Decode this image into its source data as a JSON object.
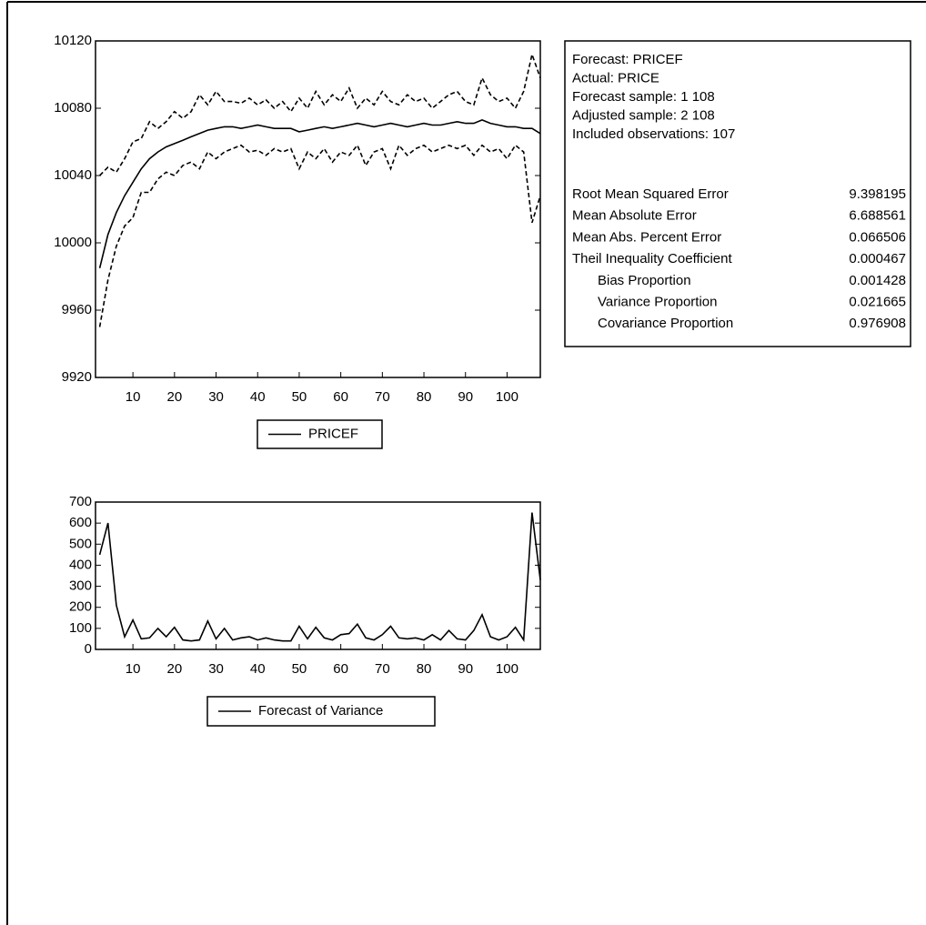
{
  "chart_data": [
    {
      "type": "line",
      "x": [
        2,
        4,
        6,
        8,
        10,
        12,
        14,
        16,
        18,
        20,
        22,
        24,
        26,
        28,
        30,
        32,
        34,
        36,
        38,
        40,
        42,
        44,
        46,
        48,
        50,
        52,
        54,
        56,
        58,
        60,
        62,
        64,
        66,
        68,
        70,
        72,
        74,
        76,
        78,
        80,
        82,
        84,
        86,
        88,
        90,
        92,
        94,
        96,
        98,
        100,
        102,
        104,
        106,
        108
      ],
      "series": [
        {
          "name": "PRICEF",
          "color": "#000000",
          "dashed": false,
          "values": [
            9985,
            10005,
            10018,
            10028,
            10036,
            10044,
            10050,
            10054,
            10057,
            10059,
            10061,
            10063,
            10065,
            10067,
            10068,
            10069,
            10069,
            10068,
            10069,
            10070,
            10069,
            10068,
            10068,
            10068,
            10066,
            10067,
            10068,
            10069,
            10068,
            10069,
            10070,
            10071,
            10070,
            10069,
            10070,
            10071,
            10070,
            10069,
            10070,
            10071,
            10070,
            10070,
            10071,
            10072,
            10071,
            10071,
            10073,
            10071,
            10070,
            10069,
            10069,
            10068,
            10068,
            10065
          ]
        },
        {
          "color": "#000000",
          "dashed": true,
          "values": [
            10040,
            10045,
            10042,
            10050,
            10060,
            10062,
            10072,
            10068,
            10072,
            10078,
            10074,
            10078,
            10088,
            10082,
            10090,
            10084,
            10084,
            10083,
            10086,
            10082,
            10085,
            10080,
            10084,
            10078,
            10086,
            10080,
            10090,
            10082,
            10088,
            10084,
            10092,
            10080,
            10086,
            10082,
            10090,
            10084,
            10082,
            10088,
            10084,
            10086,
            10080,
            10084,
            10088,
            10090,
            10084,
            10082,
            10098,
            10088,
            10084,
            10086,
            10080,
            10090,
            10112,
            10098
          ]
        },
        {
          "color": "#000000",
          "dashed": true,
          "values": [
            9950,
            9978,
            9998,
            10010,
            10015,
            10030,
            10030,
            10038,
            10042,
            10040,
            10046,
            10048,
            10044,
            10054,
            10050,
            10054,
            10056,
            10058,
            10054,
            10055,
            10052,
            10056,
            10054,
            10056,
            10044,
            10054,
            10050,
            10056,
            10048,
            10054,
            10052,
            10058,
            10046,
            10054,
            10056,
            10044,
            10058,
            10052,
            10056,
            10058,
            10054,
            10056,
            10058,
            10056,
            10058,
            10052,
            10058,
            10054,
            10056,
            10050,
            10058,
            10054,
            10012,
            10028
          ]
        }
      ],
      "xlim": [
        1,
        108
      ],
      "xticks": [
        10,
        20,
        30,
        40,
        50,
        60,
        70,
        80,
        90,
        100
      ],
      "ylim": [
        9920,
        10120
      ],
      "yticks": [
        9920,
        9960,
        10000,
        10040,
        10080,
        10120
      ]
    },
    {
      "type": "line",
      "x": [
        2,
        4,
        6,
        8,
        10,
        12,
        14,
        16,
        18,
        20,
        22,
        24,
        26,
        28,
        30,
        32,
        34,
        36,
        38,
        40,
        42,
        44,
        46,
        48,
        50,
        52,
        54,
        56,
        58,
        60,
        62,
        64,
        66,
        68,
        70,
        72,
        74,
        76,
        78,
        80,
        82,
        84,
        86,
        88,
        90,
        92,
        94,
        96,
        98,
        100,
        102,
        104,
        106,
        108
      ],
      "series": [
        {
          "name": "Forecast of Variance",
          "color": "#000000",
          "dashed": false,
          "values": [
            450,
            600,
            210,
            60,
            140,
            50,
            55,
            100,
            60,
            105,
            45,
            40,
            45,
            135,
            50,
            100,
            45,
            55,
            60,
            45,
            55,
            45,
            40,
            40,
            110,
            50,
            105,
            55,
            45,
            70,
            75,
            120,
            55,
            45,
            70,
            110,
            55,
            50,
            55,
            45,
            70,
            45,
            90,
            50,
            45,
            90,
            165,
            60,
            45,
            60,
            105,
            45,
            650,
            330
          ]
        }
      ],
      "xlim": [
        1,
        108
      ],
      "xticks": [
        10,
        20,
        30,
        40,
        50,
        60,
        70,
        80,
        90,
        100
      ],
      "ylim": [
        0,
        700
      ],
      "yticks": [
        0,
        100,
        200,
        300,
        400,
        500,
        600,
        700
      ]
    }
  ],
  "forecast_stats": {
    "header_lines": [
      "Forecast: PRICEF",
      "Actual: PRICE",
      "Forecast sample: 1 108",
      "Adjusted sample: 2 108",
      "Included observations: 107"
    ],
    "rows": [
      [
        "Root Mean Squared Error",
        9.398195
      ],
      [
        "Mean Absolute Error",
        6.688561
      ],
      [
        "Mean Abs. Percent Error",
        0.066506
      ],
      [
        "Theil Inequality Coefficient",
        0.000467
      ],
      [
        "Bias Proportion",
        0.001428
      ],
      [
        "Variance Proportion",
        0.021665
      ],
      [
        "Covariance Proportion",
        0.976908
      ]
    ]
  }
}
